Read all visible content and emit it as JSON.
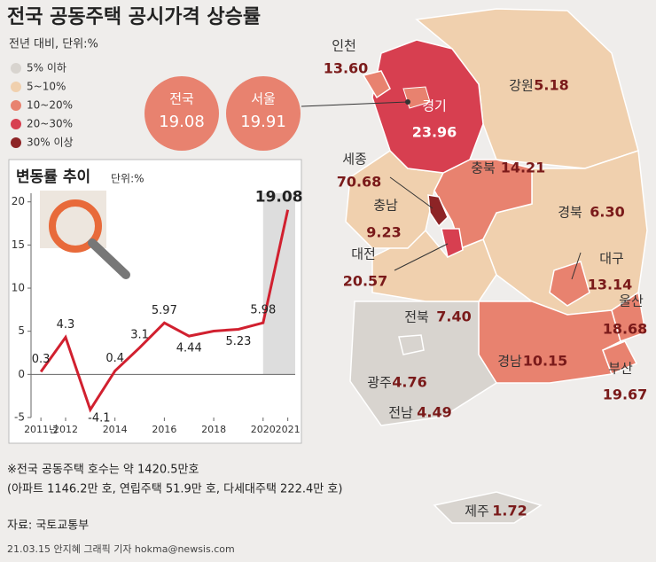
{
  "title": "전국 공동주택 공시가격 상승률",
  "subtitle": "전년 대비, 단위:%",
  "legend": [
    {
      "label": "5% 이하",
      "color": "#d8d4cf"
    },
    {
      "label": "5~10%",
      "color": "#f0d0ae"
    },
    {
      "label": "10~20%",
      "color": "#e8826f"
    },
    {
      "label": "20~30%",
      "color": "#d73f50"
    },
    {
      "label": "30% 이상",
      "color": "#8d2426"
    }
  ],
  "highlights": [
    {
      "name": "전국",
      "value": 19.08,
      "value_label": "19.08",
      "color": "#e8826f"
    },
    {
      "name": "서울",
      "value": 19.91,
      "value_label": "19.91",
      "color": "#e8826f"
    }
  ],
  "regions": [
    {
      "name": "인천",
      "value": 13.6,
      "value_label": "13.60",
      "color": "#e8826f"
    },
    {
      "name": "경기",
      "value": 23.96,
      "color": "#d73f50"
    },
    {
      "name": "강원",
      "value": 5.18,
      "color": "#f0d0ae"
    },
    {
      "name": "충북",
      "value": 14.21,
      "color": "#e8826f"
    },
    {
      "name": "세종",
      "value": 70.68,
      "color": "#8d2426"
    },
    {
      "name": "충남",
      "value": 9.23,
      "color": "#f0d0ae"
    },
    {
      "name": "대전",
      "value": 20.57,
      "color": "#d73f50"
    },
    {
      "name": "경북",
      "value": 6.3,
      "value_label": "6.30",
      "color": "#f0d0ae"
    },
    {
      "name": "대구",
      "value": 13.14,
      "color": "#e8826f"
    },
    {
      "name": "울산",
      "value": 18.68,
      "color": "#e8826f"
    },
    {
      "name": "부산",
      "value": 19.67,
      "color": "#e8826f"
    },
    {
      "name": "경남",
      "value": 10.15,
      "color": "#e8826f"
    },
    {
      "name": "전북",
      "value": 7.4,
      "value_label": "7.40",
      "color": "#f0d0ae"
    },
    {
      "name": "광주",
      "value": 4.76,
      "color": "#d8d4cf"
    },
    {
      "name": "전남",
      "value": 4.49,
      "color": "#d8d4cf"
    },
    {
      "name": "제주",
      "value": 1.72,
      "color": "#d8d4cf"
    }
  ],
  "chart_data": {
    "type": "line",
    "title": "변동률 추이",
    "unit": "단위:%",
    "x": [
      2011,
      2012,
      2013,
      2014,
      2015,
      2016,
      2017,
      2018,
      2019,
      2020,
      2021
    ],
    "values": [
      0.3,
      4.3,
      -4.1,
      0.4,
      3.1,
      5.97,
      4.44,
      5.02,
      5.23,
      5.98,
      19.08
    ],
    "value_labels": [
      "0.3",
      "4.3",
      "-4.1",
      "0.4",
      "3.1",
      "5.97",
      "4.44",
      null,
      "5.23",
      "5.98",
      "19.08"
    ],
    "color": "#d1202f",
    "xlim": [
      2010.6,
      2021.3
    ],
    "ylim": [
      -5,
      21
    ],
    "yticks": [
      -5,
      0,
      5,
      10,
      15,
      20
    ],
    "xticks": [
      {
        "value": 2011,
        "label": "2011년"
      },
      2012,
      2014,
      2016,
      2018,
      2020,
      2021
    ]
  },
  "notes": [
    "※전국 공동주택 호수는 약 1420.5만호",
    "(아파트 1146.2만 호, 연립주택 51.9만 호, 다세대주택 222.4만 호)"
  ],
  "source": "자료: 국토교통부",
  "credit": "21.03.15 안지혜 그래픽 기자 hokma@newsis.com"
}
